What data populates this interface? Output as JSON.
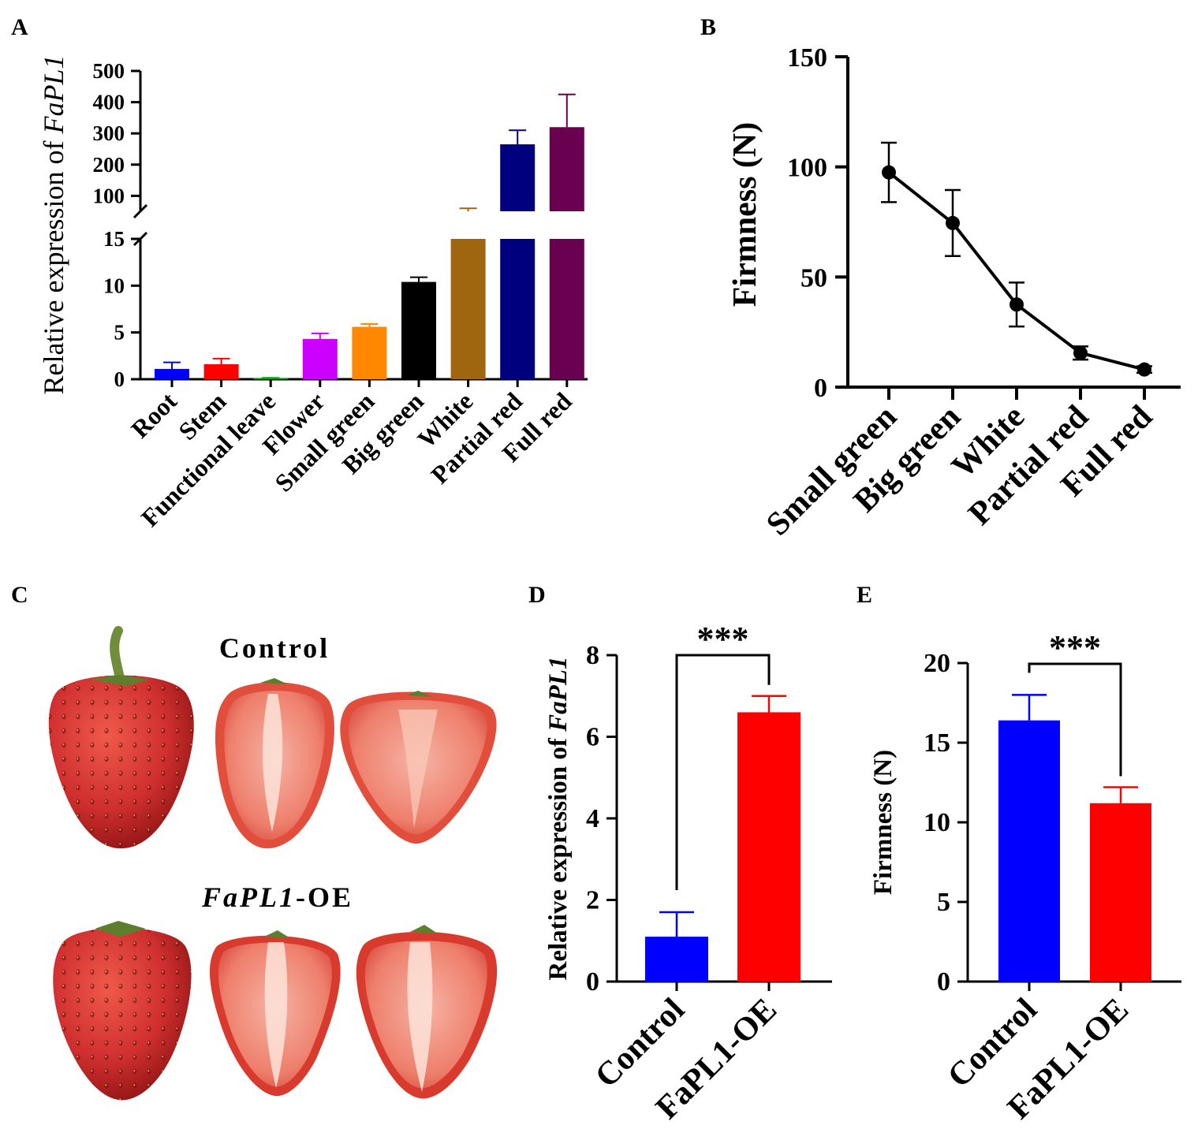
{
  "panels": {
    "a": {
      "label": "A"
    },
    "b": {
      "label": "B"
    },
    "c": {
      "label": "C"
    },
    "d": {
      "label": "D"
    },
    "e": {
      "label": "E"
    }
  },
  "photo": {
    "control_label": "Control",
    "oe_label_italic": "FaPL1",
    "oe_label_suffix": "-OE",
    "fruit_color": "#cf2f2f",
    "flesh_color": "#f08a7a"
  },
  "chart_data": [
    {
      "panel": "A",
      "type": "bar",
      "ylabel_prefix": "Relative expression of ",
      "ylabel_italic": "FaPL1",
      "y_axis_break": true,
      "lower_segment": {
        "range": [
          0,
          15
        ],
        "ticks": [
          "0",
          "5",
          "10",
          "15"
        ]
      },
      "upper_segment": {
        "range": [
          0,
          500
        ],
        "ticks": [
          "100",
          "200",
          "300",
          "400",
          "500"
        ]
      },
      "categories": [
        "Root",
        "Stem",
        "Functional leave",
        "Flower",
        "Small green",
        "Big green",
        "White",
        "Partial red",
        "Full red"
      ],
      "values": [
        1.1,
        1.6,
        0.1,
        4.3,
        5.6,
        10.4,
        50,
        265,
        320
      ],
      "errors": [
        0.7,
        0.6,
        0.05,
        0.6,
        0.3,
        0.5,
        10,
        45,
        105
      ],
      "colors": [
        "#0000ff",
        "#ff0000",
        "#00aa00",
        "#cc00ff",
        "#ff8800",
        "#000000",
        "#a0650f",
        "#00007f",
        "#6a0050"
      ]
    },
    {
      "panel": "B",
      "type": "line",
      "ylabel": "Firmness (N)",
      "ylim": [
        0,
        150
      ],
      "yticks": [
        "0",
        "50",
        "100",
        "150"
      ],
      "categories": [
        "Small green",
        "Big green",
        "White",
        "Partial red",
        "Full red"
      ],
      "values": [
        97.5,
        74.5,
        37.5,
        15.5,
        8
      ],
      "errors": [
        13.5,
        15,
        10,
        3,
        1.5
      ],
      "color": "#000000"
    },
    {
      "panel": "D",
      "type": "bar",
      "ylabel_prefix": "Relative expression of ",
      "ylabel_italic": "FaPL1",
      "ylim": [
        0,
        8
      ],
      "yticks": [
        "0",
        "2",
        "4",
        "6",
        "8"
      ],
      "categories": [
        "Control",
        "FaPL1-OE"
      ],
      "values": [
        1.1,
        6.6
      ],
      "errors": [
        0.6,
        0.4
      ],
      "colors": [
        "#0000ff",
        "#ff0000"
      ],
      "significance": "***"
    },
    {
      "panel": "E",
      "type": "bar",
      "ylabel": "Firmness (N)",
      "ylim": [
        0,
        20
      ],
      "yticks": [
        "0",
        "5",
        "10",
        "15",
        "20"
      ],
      "categories": [
        "Control",
        "FaPL1-OE"
      ],
      "values": [
        16.4,
        11.2
      ],
      "errors": [
        1.6,
        1.0
      ],
      "colors": [
        "#0000ff",
        "#ff0000"
      ],
      "significance": "***"
    }
  ]
}
